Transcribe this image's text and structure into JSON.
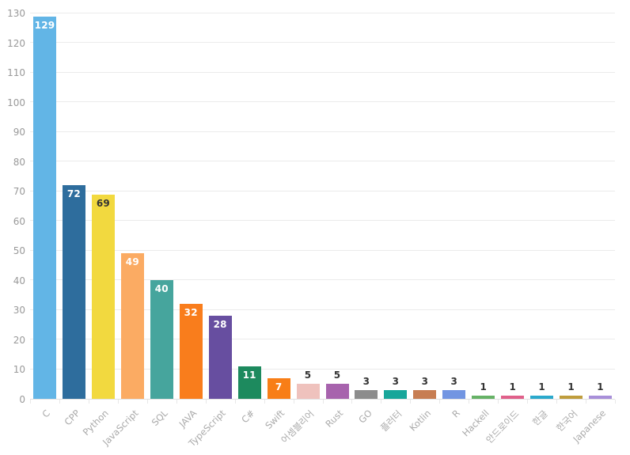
{
  "chart_data": {
    "type": "bar",
    "title": "",
    "xlabel": "",
    "ylabel": "",
    "ylim": [
      0,
      130
    ],
    "y_ticks": [
      0,
      10,
      20,
      30,
      40,
      50,
      60,
      70,
      80,
      90,
      100,
      110,
      120,
      130
    ],
    "grid": true,
    "legend": false,
    "categories": [
      "C",
      "CPP",
      "Python",
      "JavaScript",
      "SQL",
      "JAVA",
      "TypeScript",
      "C#",
      "Swift",
      "어셈블리어",
      "Rust",
      "GO",
      "플러터",
      "Kotlin",
      "R",
      "Hackell",
      "안드로이드",
      "한글",
      "한국어",
      "Japanese"
    ],
    "values": [
      129,
      72,
      69,
      49,
      40,
      32,
      28,
      11,
      7,
      5,
      5,
      3,
      3,
      3,
      3,
      1,
      1,
      1,
      1,
      1
    ],
    "bars": [
      {
        "label": "C",
        "value": 129,
        "color": "#62b5e6",
        "value_color": "#ffffff",
        "value_placement": "inside"
      },
      {
        "label": "CPP",
        "value": 72,
        "color": "#2e6d9d",
        "value_color": "#ffffff",
        "value_placement": "inside"
      },
      {
        "label": "Python",
        "value": 69,
        "color": "#f2d93f",
        "value_color": "#333333",
        "value_placement": "inside"
      },
      {
        "label": "JavaScript",
        "value": 49,
        "color": "#fbab63",
        "value_color": "#ffffff",
        "value_placement": "inside"
      },
      {
        "label": "SQL",
        "value": 40,
        "color": "#46a59d",
        "value_color": "#ffffff",
        "value_placement": "inside"
      },
      {
        "label": "JAVA",
        "value": 32,
        "color": "#f97d1c",
        "value_color": "#ffffff",
        "value_placement": "inside"
      },
      {
        "label": "TypeScript",
        "value": 28,
        "color": "#674ea0",
        "value_color": "#ffffff",
        "value_placement": "inside"
      },
      {
        "label": "C#",
        "value": 11,
        "color": "#1d8a5e",
        "value_color": "#ffffff",
        "value_placement": "inside"
      },
      {
        "label": "Swift",
        "value": 7,
        "color": "#f87e17",
        "value_color": "#ffffff",
        "value_placement": "inside"
      },
      {
        "label": "어셈블리어",
        "value": 5,
        "color": "#efc2bd",
        "value_color": "#333333",
        "value_placement": "above"
      },
      {
        "label": "Rust",
        "value": 5,
        "color": "#a763ad",
        "value_color": "#333333",
        "value_placement": "above"
      },
      {
        "label": "GO",
        "value": 3,
        "color": "#8c8c8c",
        "value_color": "#333333",
        "value_placement": "above"
      },
      {
        "label": "플러터",
        "value": 3,
        "color": "#18a69a",
        "value_color": "#333333",
        "value_placement": "above"
      },
      {
        "label": "Kotlin",
        "value": 3,
        "color": "#c77d52",
        "value_color": "#333333",
        "value_placement": "above"
      },
      {
        "label": "R",
        "value": 3,
        "color": "#7295e2",
        "value_color": "#333333",
        "value_placement": "above"
      },
      {
        "label": "Hackell",
        "value": 1,
        "color": "#66b266",
        "value_color": "#333333",
        "value_placement": "above"
      },
      {
        "label": "안드로이드",
        "value": 1,
        "color": "#e0608a",
        "value_color": "#333333",
        "value_placement": "above"
      },
      {
        "label": "한글",
        "value": 1,
        "color": "#2ba9cc",
        "value_color": "#333333",
        "value_placement": "above"
      },
      {
        "label": "한국어",
        "value": 1,
        "color": "#bf9d3c",
        "value_color": "#333333",
        "value_placement": "above"
      },
      {
        "label": "Japanese",
        "value": 1,
        "color": "#a88fd9",
        "value_color": "#333333",
        "value_placement": "above"
      }
    ],
    "style": {
      "background_color": "#ffffff",
      "grid_color": "#ebebeb",
      "axis_line_color": "#e0e0e0",
      "y_tick_label_color": "#999999",
      "x_label_color": "#aaaaaa",
      "x_label_rotation_deg": -45
    }
  }
}
